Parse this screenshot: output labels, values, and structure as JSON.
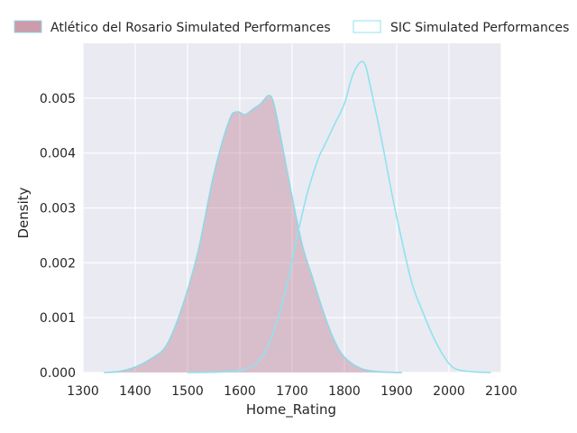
{
  "chart_data": {
    "type": "area",
    "title": "",
    "xlabel": "Home_Rating",
    "ylabel": "Density",
    "xlim": [
      1300,
      2100
    ],
    "ylim": [
      0,
      0.006
    ],
    "x_ticks": [
      1300,
      1400,
      1500,
      1600,
      1700,
      1800,
      1900,
      2000,
      2100
    ],
    "y_ticks": [
      0.0,
      0.001,
      0.002,
      0.003,
      0.004,
      0.005
    ],
    "x_tick_labels": [
      "1300",
      "1400",
      "1500",
      "1600",
      "1700",
      "1800",
      "1900",
      "2000",
      "2100"
    ],
    "y_tick_labels": [
      "0.000",
      "0.001",
      "0.002",
      "0.003",
      "0.004",
      "0.005"
    ],
    "grid": true,
    "legend_position": "top (above plot, horizontal)",
    "series": [
      {
        "name": "Atlético del Rosario Simulated Performances",
        "fill_color": "#c48a9c",
        "line_color": "#8fd8e6",
        "filled": true,
        "x": [
          1340,
          1370,
          1400,
          1430,
          1460,
          1490,
          1520,
          1550,
          1580,
          1595,
          1610,
          1625,
          1640,
          1655,
          1665,
          1680,
          1700,
          1720,
          1740,
          1760,
          1780,
          1800,
          1830,
          1860,
          1890,
          1910
        ],
        "y": [
          0.0,
          2e-05,
          0.0001,
          0.00025,
          0.0005,
          0.0012,
          0.0022,
          0.0036,
          0.0046,
          0.00475,
          0.0047,
          0.0048,
          0.0049,
          0.00505,
          0.0049,
          0.0042,
          0.0032,
          0.0023,
          0.0017,
          0.0011,
          0.0006,
          0.00028,
          8e-05,
          2e-05,
          5e-06,
          0.0
        ]
      },
      {
        "name": "SIC Simulated Performances",
        "fill_color": "none",
        "line_color": "#8fe3ee",
        "filled": false,
        "x": [
          1500,
          1560,
          1600,
          1630,
          1650,
          1670,
          1690,
          1710,
          1730,
          1750,
          1760,
          1780,
          1800,
          1815,
          1830,
          1840,
          1850,
          1870,
          1890,
          1910,
          1930,
          1950,
          1970,
          1990,
          2010,
          2040,
          2080
        ],
        "y": [
          0.0,
          1e-05,
          4e-05,
          0.00015,
          0.0004,
          0.0009,
          0.0016,
          0.0025,
          0.0033,
          0.0039,
          0.0041,
          0.0045,
          0.0049,
          0.0054,
          0.00565,
          0.0056,
          0.0052,
          0.0043,
          0.0033,
          0.0024,
          0.0016,
          0.0011,
          0.00065,
          0.0003,
          8e-05,
          2e-05,
          0.0
        ]
      }
    ]
  }
}
